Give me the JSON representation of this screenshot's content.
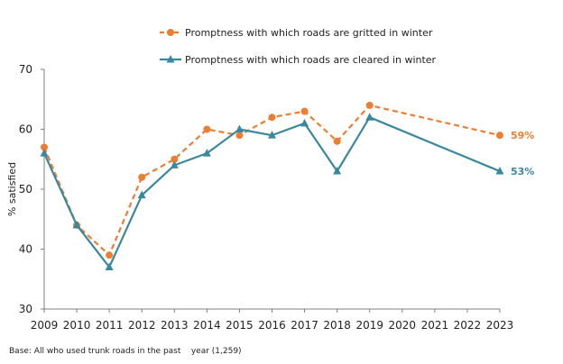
{
  "chart_data": {
    "type": "line",
    "title": "",
    "xlabel": "",
    "ylabel": "% satisfied",
    "ylim": [
      30,
      70
    ],
    "yticks": [
      30,
      40,
      50,
      60,
      70
    ],
    "x": [
      2009,
      2010,
      2011,
      2012,
      2013,
      2014,
      2015,
      2016,
      2017,
      2018,
      2019,
      2020,
      2021,
      2022,
      2023
    ],
    "x_tick_labels": [
      "2009",
      "2010",
      "2011",
      "2012",
      "2013",
      "2014",
      "2015",
      "2016",
      "2017",
      "2018",
      "2019",
      "2020",
      "2021",
      "2022",
      "2023"
    ],
    "grid": false,
    "legend_position": "top-center",
    "series": [
      {
        "name": "Promptness with which roads are gritted in winter",
        "color": "#ED7D31",
        "style": "dashed",
        "marker": "circle",
        "points": [
          [
            2009,
            57
          ],
          [
            2010,
            44
          ],
          [
            2011,
            39
          ],
          [
            2012,
            52
          ],
          [
            2013,
            55
          ],
          [
            2014,
            60
          ],
          [
            2015,
            59
          ],
          [
            2016,
            62
          ],
          [
            2017,
            63
          ],
          [
            2018,
            58
          ],
          [
            2019,
            64
          ],
          [
            2023,
            59
          ]
        ],
        "end_label": "59%"
      },
      {
        "name": "Promptness with which roads are cleared in winter",
        "color": "#3A87A0",
        "style": "solid",
        "marker": "triangle",
        "points": [
          [
            2009,
            56
          ],
          [
            2010,
            44
          ],
          [
            2011,
            37
          ],
          [
            2012,
            49
          ],
          [
            2013,
            54
          ],
          [
            2014,
            56
          ],
          [
            2015,
            60
          ],
          [
            2016,
            59
          ],
          [
            2017,
            61
          ],
          [
            2018,
            53
          ],
          [
            2019,
            62
          ],
          [
            2023,
            53
          ]
        ],
        "end_label": "53%"
      }
    ]
  },
  "footnote": "Base: All who used trunk roads in the past    year (1,259)"
}
